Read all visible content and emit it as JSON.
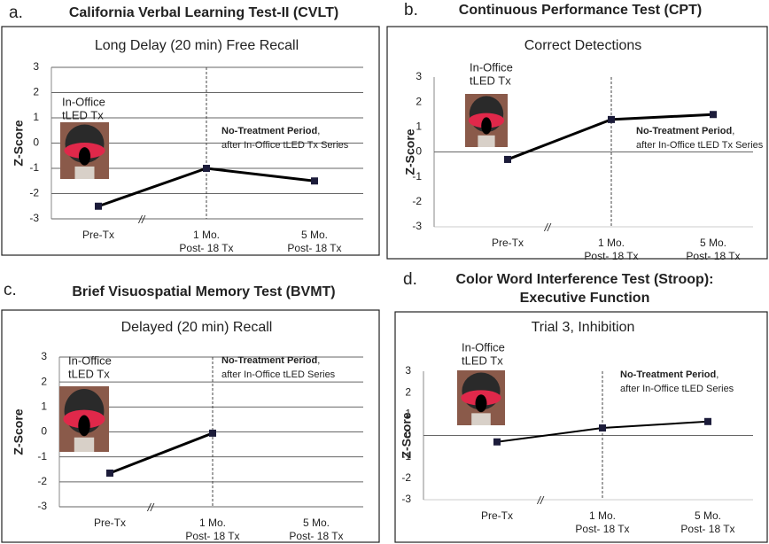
{
  "chart_data": [
    {
      "type": "line",
      "letter": "a.",
      "heading": [
        "California Verbal Learning Test-II (CVLT)"
      ],
      "title": "Long Delay (20 min) Free Recall",
      "y_label": "Z-Score",
      "categories": [
        [
          "Pre-Tx"
        ],
        [
          "1 Mo.",
          "Post- 18 Tx"
        ],
        [
          "5 Mo.",
          "Post- 18 Tx"
        ]
      ],
      "values": [
        -2.5,
        -1.0,
        -1.5
      ],
      "color": "#000000",
      "ylim": [
        -3,
        3
      ],
      "yticks": [
        -3,
        -2,
        -1,
        0,
        1,
        2,
        3
      ],
      "grid": true,
      "inset_label": [
        "In-Office",
        "tLED Tx"
      ],
      "note_bold": "No-Treatment Period",
      "note_tail": ",",
      "note_line2": "after In-Office tLED Tx Series",
      "axis_break": "//"
    },
    {
      "type": "line",
      "letter": "b.",
      "heading": [
        "Continuous Performance Test (CPT)"
      ],
      "title": "Correct Detections",
      "y_label": "Z-Score",
      "categories": [
        [
          "Pre-Tx"
        ],
        [
          "1 Mo.",
          "Post- 18 Tx"
        ],
        [
          "5 Mo.",
          "Post- 18 Tx"
        ]
      ],
      "values": [
        -0.3,
        1.3,
        1.5
      ],
      "color": "#000000",
      "ylim": [
        -3,
        3
      ],
      "yticks": [
        -3,
        -2,
        -1,
        0,
        1,
        2,
        3
      ],
      "grid": false,
      "inset_label": [
        "In-Office",
        "tLED Tx"
      ],
      "note_bold": "No-Treatment Period",
      "note_tail": ",",
      "note_line2": "after In-Office tLED Tx Series",
      "axis_break": "//"
    },
    {
      "type": "line",
      "letter": "c.",
      "heading": [
        "Brief Visuospatial Memory Test (BVMT)"
      ],
      "title": "Delayed (20 min) Recall",
      "y_label": "Z-Score",
      "categories": [
        [
          "Pre-Tx"
        ],
        [
          "1 Mo.",
          "Post- 18 Tx"
        ],
        [
          "5 Mo.",
          "Post- 18 Tx"
        ]
      ],
      "values": [
        -1.65,
        -0.05,
        null
      ],
      "color": "#000000",
      "ylim": [
        -3,
        3
      ],
      "yticks": [
        -3,
        -2,
        -1,
        0,
        1,
        2,
        3
      ],
      "grid": true,
      "inset_label": [
        "In-Office",
        "tLED Tx"
      ],
      "note_bold": "No-Treatment Period",
      "note_tail": ",",
      "note_line2": "after In-Office tLED Series",
      "axis_break": "//"
    },
    {
      "type": "line",
      "letter": "d.",
      "heading": [
        "Color Word Interference Test (Stroop):",
        "Executive Function"
      ],
      "title": "Trial 3, Inhibition",
      "y_label": "Z-Score",
      "categories": [
        [
          "Pre-Tx"
        ],
        [
          "1 Mo.",
          "Post- 18 Tx"
        ],
        [
          "5 Mo.",
          "Post- 18 Tx"
        ]
      ],
      "values": [
        -0.3,
        0.35,
        0.65
      ],
      "color": "#000000",
      "ylim": [
        -3,
        3
      ],
      "yticks": [
        -3,
        -2,
        -1,
        0,
        1,
        2,
        3
      ],
      "grid": false,
      "inset_label": [
        "In-Office",
        "tLED Tx"
      ],
      "note_bold": "No-Treatment Period",
      "note_tail": ",",
      "note_line2": "after In-Office tLED Series",
      "axis_break": "//"
    }
  ]
}
